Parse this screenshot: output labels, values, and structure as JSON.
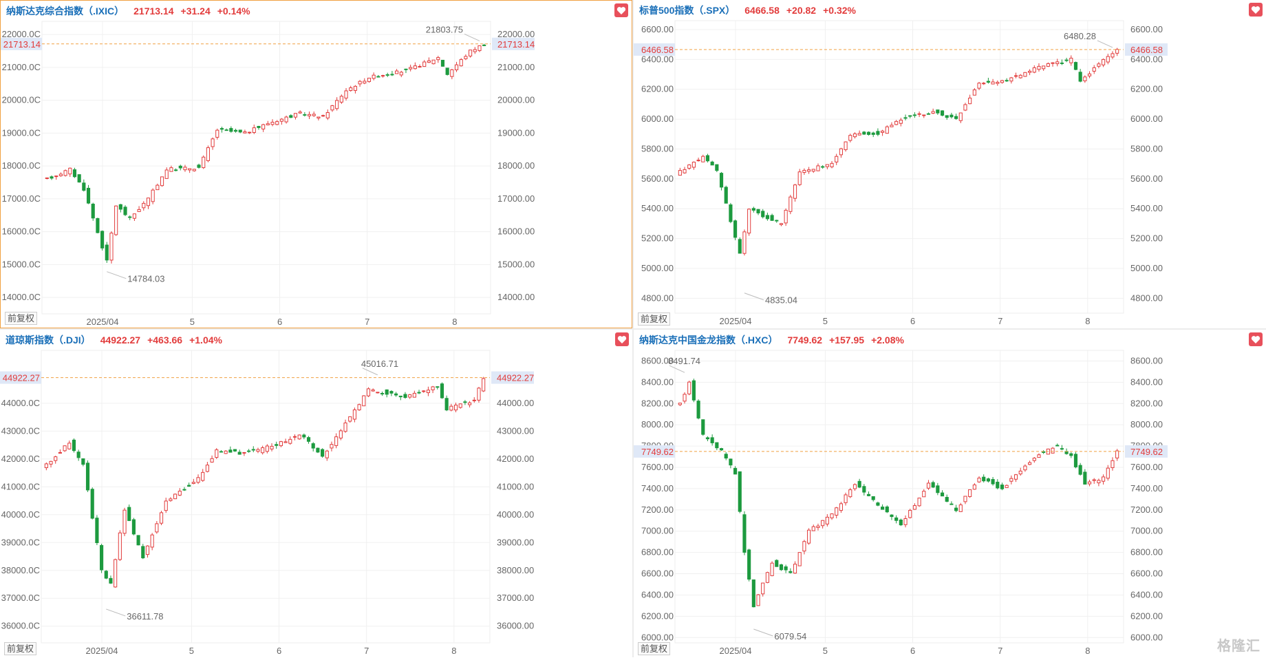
{
  "watermark": "格隆汇",
  "adjust_label": "前复权",
  "colors": {
    "up": "#e23b3b",
    "down": "#1d9a3f",
    "title": "#1a6fb8",
    "last_line": "#f0a040"
  },
  "panels": [
    {
      "id": "ixic",
      "active": true,
      "name": "纳斯达克综合指数（.IXIC）",
      "last": "21713.14",
      "change": "+31.24",
      "pct": "+0.14%",
      "chart_data": {
        "type": "candlestick",
        "ylim": [
          13500,
          22400
        ],
        "yticks": [
          14000,
          15000,
          16000,
          17000,
          18000,
          19000,
          20000,
          21000,
          22000
        ],
        "ytick_labels_left": [
          "14000.0C",
          "15000.0C",
          "16000.0C",
          "17000.0C",
          "18000.0C",
          "19000.0C",
          "20000.0C",
          "21000.0C",
          "22000.0C"
        ],
        "ytick_labels_right": [
          "14000.00",
          "15000.00",
          "16000.00",
          "17000.00",
          "18000.00",
          "19000.00",
          "20000.00",
          "21000.00",
          "22000.00"
        ],
        "xticks": [
          {
            "label": "2025/04",
            "pos": 0.135
          },
          {
            "label": "5",
            "pos": 0.335
          },
          {
            "label": "6",
            "pos": 0.53
          },
          {
            "label": "7",
            "pos": 0.725
          },
          {
            "label": "8",
            "pos": 0.92
          }
        ],
        "last_value": 21713.14,
        "last_label": "21713.14",
        "high_label": {
          "text": "21803.75",
          "value": 21803.75,
          "index": 94
        },
        "low_label": {
          "text": "14784.03",
          "value": 14784.03,
          "index": 13
        },
        "anchors": [
          [
            0,
            17600
          ],
          [
            5,
            17900
          ],
          [
            8,
            17300
          ],
          [
            13,
            15100
          ],
          [
            15,
            16800
          ],
          [
            18,
            16400
          ],
          [
            22,
            17000
          ],
          [
            26,
            17900
          ],
          [
            33,
            17950
          ],
          [
            37,
            19100
          ],
          [
            43,
            19000
          ],
          [
            48,
            19300
          ],
          [
            55,
            19600
          ],
          [
            60,
            19500
          ],
          [
            65,
            20300
          ],
          [
            70,
            20700
          ],
          [
            78,
            20900
          ],
          [
            85,
            21300
          ],
          [
            87,
            20800
          ],
          [
            92,
            21500
          ],
          [
            95,
            21713
          ]
        ],
        "n": 96
      }
    },
    {
      "id": "spx",
      "active": false,
      "name": "标普500指数（.SPX）",
      "last": "6466.58",
      "change": "+20.82",
      "pct": "+0.32%",
      "chart_data": {
        "type": "candlestick",
        "ylim": [
          4700,
          6660
        ],
        "yticks": [
          4800,
          5000,
          5200,
          5400,
          5600,
          5800,
          6000,
          6200,
          6400,
          6600
        ],
        "ytick_labels_left": [
          "4800.00",
          "5000.00",
          "5200.00",
          "5400.00",
          "5600.00",
          "5800.00",
          "6000.00",
          "6200.00",
          "6400.00",
          "6600.00"
        ],
        "ytick_labels_right": [
          "4800.00",
          "5000.00",
          "5200.00",
          "5400.00",
          "5600.00",
          "5800.00",
          "6000.00",
          "6200.00",
          "6400.00",
          "6600.00"
        ],
        "xticks": [
          {
            "label": "2025/04",
            "pos": 0.135
          },
          {
            "label": "5",
            "pos": 0.335
          },
          {
            "label": "6",
            "pos": 0.53
          },
          {
            "label": "7",
            "pos": 0.725
          },
          {
            "label": "8",
            "pos": 0.92
          }
        ],
        "last_value": 6466.58,
        "last_label": "6466.58",
        "high_label": {
          "text": "6480.28",
          "value": 6480.28,
          "index": 94
        },
        "low_label": {
          "text": "4835.04",
          "value": 4835.04,
          "index": 14
        },
        "anchors": [
          [
            0,
            5650
          ],
          [
            5,
            5750
          ],
          [
            8,
            5650
          ],
          [
            13,
            5100
          ],
          [
            15,
            5400
          ],
          [
            18,
            5350
          ],
          [
            22,
            5300
          ],
          [
            26,
            5650
          ],
          [
            33,
            5700
          ],
          [
            37,
            5900
          ],
          [
            43,
            5900
          ],
          [
            48,
            6000
          ],
          [
            55,
            6050
          ],
          [
            60,
            6000
          ],
          [
            65,
            6250
          ],
          [
            70,
            6250
          ],
          [
            78,
            6350
          ],
          [
            85,
            6400
          ],
          [
            87,
            6250
          ],
          [
            92,
            6400
          ],
          [
            95,
            6466
          ]
        ],
        "n": 96
      }
    },
    {
      "id": "dji",
      "active": false,
      "name": "道琼斯指数（.DJI）",
      "last": "44922.27",
      "change": "+463.66",
      "pct": "+1.04%",
      "chart_data": {
        "type": "candlestick",
        "ylim": [
          35400,
          45900
        ],
        "yticks": [
          36000,
          37000,
          38000,
          39000,
          40000,
          41000,
          42000,
          43000,
          44000
        ],
        "ytick_labels_left": [
          "36000.0C",
          "37000.0C",
          "38000.0C",
          "39000.0C",
          "40000.0C",
          "41000.0C",
          "42000.0C",
          "43000.0C",
          "44000.0C"
        ],
        "ytick_labels_right": [
          "36000.00",
          "37000.00",
          "38000.00",
          "39000.00",
          "40000.00",
          "41000.00",
          "42000.00",
          "43000.00",
          "44000.00"
        ],
        "xticks": [
          {
            "label": "2025/04",
            "pos": 0.135
          },
          {
            "label": "5",
            "pos": 0.335
          },
          {
            "label": "6",
            "pos": 0.53
          },
          {
            "label": "7",
            "pos": 0.725
          },
          {
            "label": "8",
            "pos": 0.92
          }
        ],
        "last_value": 44922.27,
        "last_label": "44922.27",
        "high_label": {
          "text": "45016.71",
          "value": 45016.71,
          "index": 72
        },
        "low_label": {
          "text": "36611.78",
          "value": 36611.78,
          "index": 13
        },
        "anchors": [
          [
            0,
            41800
          ],
          [
            5,
            42600
          ],
          [
            8,
            41800
          ],
          [
            12,
            38000
          ],
          [
            14,
            37500
          ],
          [
            17,
            40200
          ],
          [
            21,
            38500
          ],
          [
            26,
            40500
          ],
          [
            33,
            41300
          ],
          [
            37,
            42300
          ],
          [
            43,
            42200
          ],
          [
            50,
            42500
          ],
          [
            55,
            42900
          ],
          [
            60,
            42100
          ],
          [
            66,
            43500
          ],
          [
            70,
            44500
          ],
          [
            78,
            44200
          ],
          [
            85,
            44600
          ],
          [
            87,
            43800
          ],
          [
            93,
            44100
          ],
          [
            95,
            44922
          ]
        ],
        "n": 96
      }
    },
    {
      "id": "hxc",
      "active": false,
      "name": "纳斯达克中国金龙指数（.HXC）",
      "last": "7749.62",
      "change": "+157.95",
      "pct": "+2.08%",
      "chart_data": {
        "type": "candlestick",
        "ylim": [
          5950,
          8700
        ],
        "yticks": [
          6000,
          6200,
          6400,
          6600,
          6800,
          7000,
          7200,
          7400,
          7600,
          7800,
          8000,
          8200,
          8400,
          8600
        ],
        "ytick_labels_left": [
          "6000.00",
          "6200.00",
          "6400.00",
          "6600.00",
          "6800.00",
          "7000.00",
          "7200.00",
          "7400.00",
          "7600.00",
          "7800.00",
          "8000.00",
          "8200.00",
          "8400.00",
          "8600.00"
        ],
        "ytick_labels_right": [
          "6000.00",
          "6200.00",
          "6400.00",
          "6600.00",
          "6800.00",
          "7000.00",
          "7200.00",
          "7400.00",
          "7600.00",
          "7800.00",
          "8000.00",
          "8200.00",
          "8400.00",
          "8600.00"
        ],
        "xticks": [
          {
            "label": "2025/04",
            "pos": 0.135
          },
          {
            "label": "5",
            "pos": 0.335
          },
          {
            "label": "6",
            "pos": 0.53
          },
          {
            "label": "7",
            "pos": 0.725
          },
          {
            "label": "8",
            "pos": 0.92
          }
        ],
        "last_value": 7749.62,
        "last_label": "7749.62",
        "high_label": {
          "text": "8491.74",
          "value": 8491.74,
          "index": 1
        },
        "low_label": {
          "text": "6079.54",
          "value": 6079.54,
          "index": 16
        },
        "anchors": [
          [
            0,
            8200
          ],
          [
            2,
            8400
          ],
          [
            5,
            7900
          ],
          [
            9,
            7750
          ],
          [
            12,
            7550
          ],
          [
            14,
            6800
          ],
          [
            16,
            6300
          ],
          [
            20,
            6700
          ],
          [
            24,
            6600
          ],
          [
            28,
            7000
          ],
          [
            33,
            7150
          ],
          [
            38,
            7450
          ],
          [
            43,
            7250
          ],
          [
            48,
            7050
          ],
          [
            54,
            7450
          ],
          [
            60,
            7200
          ],
          [
            65,
            7500
          ],
          [
            70,
            7400
          ],
          [
            77,
            7700
          ],
          [
            82,
            7800
          ],
          [
            85,
            7700
          ],
          [
            88,
            7450
          ],
          [
            92,
            7500
          ],
          [
            95,
            7749
          ]
        ],
        "n": 96
      }
    }
  ]
}
